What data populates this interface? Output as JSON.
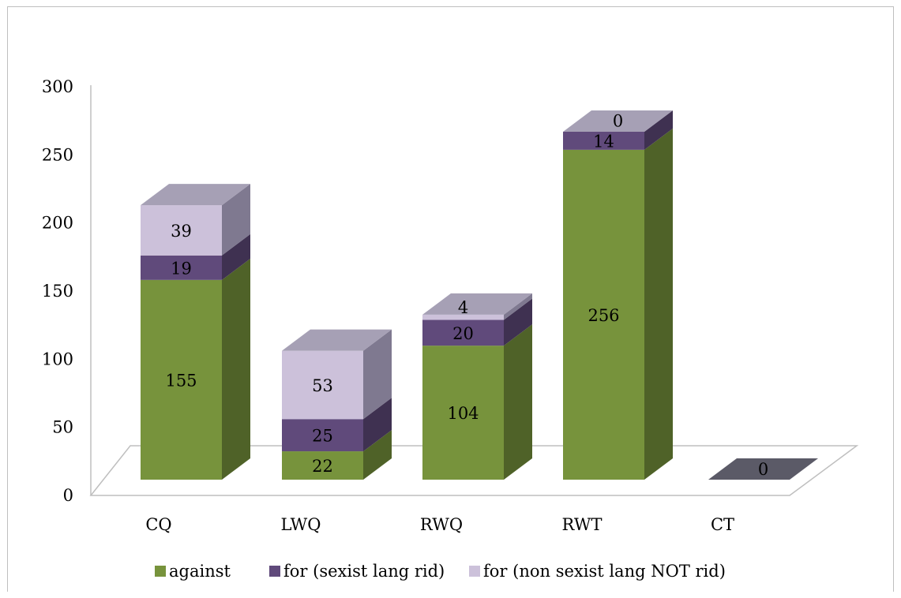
{
  "chart_data": {
    "type": "bar",
    "stacked": true,
    "three_d": true,
    "categories": [
      "CQ",
      "LWQ",
      "RWQ",
      "RWT",
      "CT"
    ],
    "series": [
      {
        "name": "against",
        "values": [
          155,
          22,
          104,
          256,
          0
        ],
        "color": "#77933c",
        "side_color": "#4f6228",
        "top_color": "#9bbb59"
      },
      {
        "name": "for (sexist lang rid)",
        "values": [
          19,
          25,
          20,
          14,
          0
        ],
        "color": "#604a7b",
        "side_color": "#3f3151",
        "top_color": "#8064a2"
      },
      {
        "name": "for (non sexist lang NOT rid)",
        "values": [
          39,
          53,
          4,
          0,
          0
        ],
        "color": "#ccc1da",
        "side_color": "#7f7990",
        "top_color": "#a6a0b5"
      }
    ],
    "data_labels": [
      [
        "155",
        "22",
        "104",
        "256",
        "0"
      ],
      [
        "19",
        "25",
        "20",
        "14",
        ""
      ],
      [
        "39",
        "53",
        "4",
        "0",
        ""
      ]
    ],
    "y_ticks": [
      "0",
      "50",
      "100",
      "150",
      "200",
      "250",
      "300"
    ],
    "ylim": [
      0,
      300
    ],
    "grid": false,
    "legend_position": "bottom",
    "title": "",
    "xlabel": "",
    "ylabel": "",
    "colors": {
      "floor_edge": "#bfbfbf",
      "empty_base": "#5b5a67",
      "top_face_gray": "#a6a0b5",
      "side_face_gray": "#7f7990"
    }
  }
}
